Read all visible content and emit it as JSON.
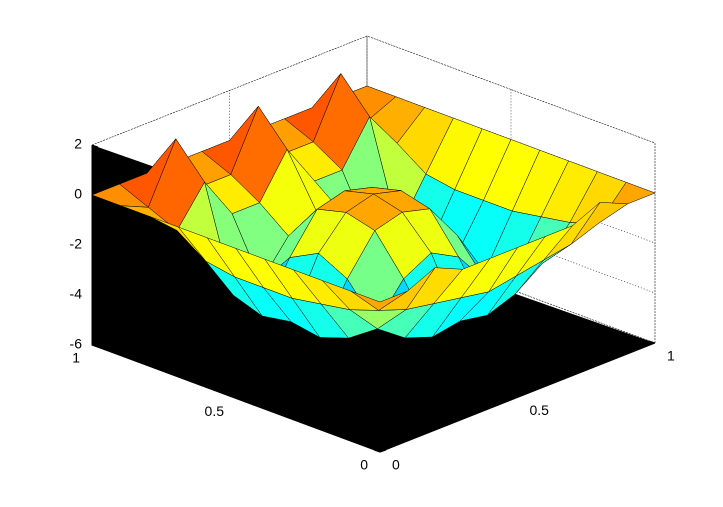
{
  "chart_data": {
    "type": "surface",
    "x": [
      0,
      0.1,
      0.2,
      0.3,
      0.4,
      0.5,
      0.6,
      0.7,
      0.8,
      0.9,
      1
    ],
    "y": [
      0,
      0.1,
      0.2,
      0.3,
      0.4,
      0.5,
      0.6,
      0.7,
      0.8,
      0.9,
      1
    ],
    "z": [
      [
        0,
        0,
        0.5,
        0,
        0,
        0,
        0,
        0,
        0.5,
        0,
        0
      ],
      [
        0,
        -1.2,
        -1.6,
        -1.8,
        -2,
        -2.2,
        -2,
        -1.8,
        -1.6,
        -1.2,
        0
      ],
      [
        0,
        -1.6,
        -2.8,
        -3.6,
        -4,
        -3.8,
        -4,
        -3.6,
        -2.8,
        -1.6,
        0
      ],
      [
        0,
        -1.8,
        -3.6,
        -3.5,
        -2.1,
        -1.5,
        -2.1,
        -3.5,
        -3.6,
        -1.8,
        0
      ],
      [
        0,
        -2,
        -4,
        -2.1,
        -0.6,
        -0.3,
        -0.6,
        -2.1,
        -4,
        -2,
        0
      ],
      [
        0,
        -2,
        -3.8,
        -1.5,
        -0.3,
        0,
        -0.3,
        -1.5,
        -3.8,
        -2,
        0
      ],
      [
        0,
        -2,
        -4,
        -2.1,
        -0.6,
        -0.3,
        -0.6,
        -2.1,
        -4,
        -2,
        0
      ],
      [
        0,
        -1.8,
        -3.6,
        -3.5,
        -2.1,
        -1.5,
        -2.1,
        -3.5,
        -3.6,
        -1.8,
        0
      ],
      [
        0,
        -1,
        0.5,
        -1.2,
        -1.2,
        0.5,
        -1.2,
        -1.2,
        0.5,
        -1,
        0
      ],
      [
        0,
        -0.5,
        1.8,
        -0.5,
        -0.5,
        1.8,
        -0.5,
        -0.5,
        1.8,
        -0.5,
        0
      ],
      [
        0,
        0,
        0,
        0,
        0,
        0,
        0,
        0,
        0,
        0,
        0
      ]
    ],
    "xlim": [
      0,
      1
    ],
    "ylim": [
      0,
      1
    ],
    "zlim": [
      -6,
      2
    ],
    "xticks": [
      0,
      0.5,
      1
    ],
    "yticks": [
      0,
      0.5,
      1
    ],
    "zticks": [
      -6,
      -4,
      -2,
      0,
      2
    ],
    "colormap": "jet",
    "grid": true
  }
}
